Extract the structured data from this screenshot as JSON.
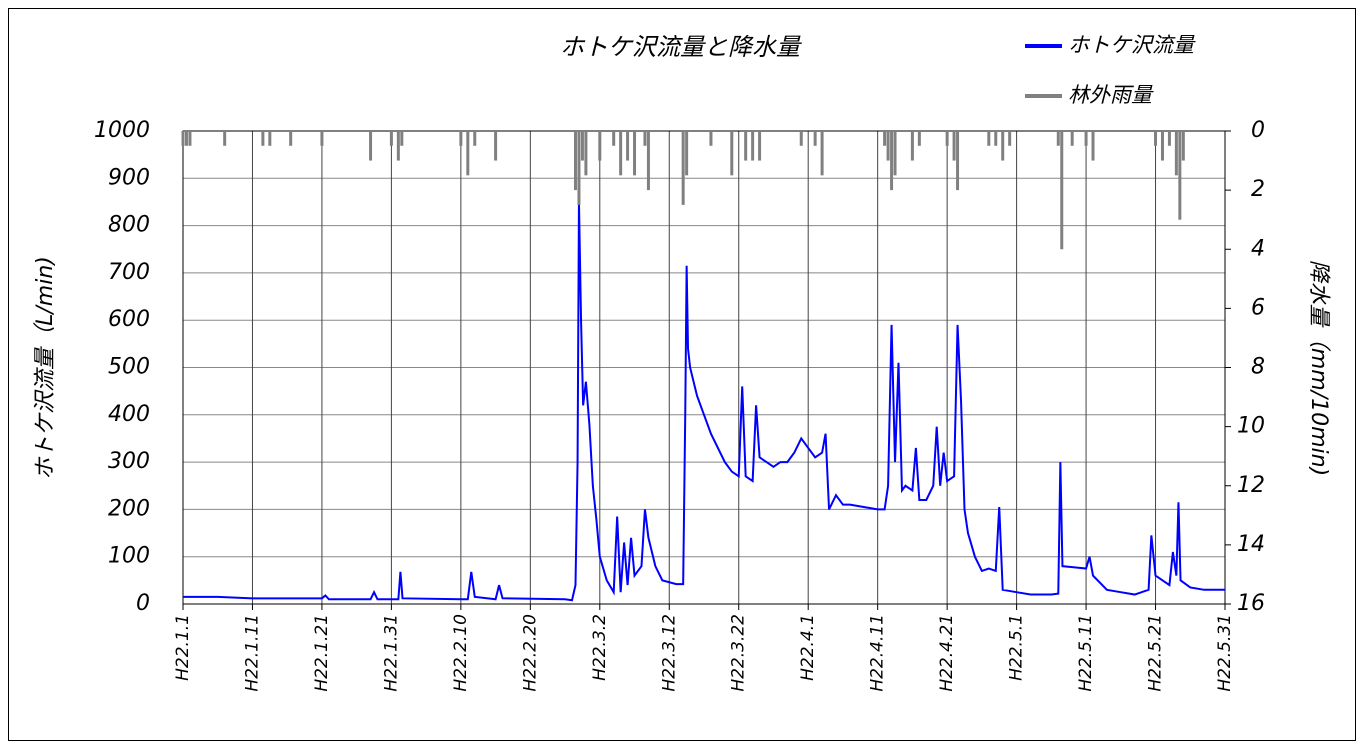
{
  "chart_data": {
    "type": "line",
    "title": "ホトケ沢流量と降水量",
    "y_label": "ホトケ沢流量（L/min)",
    "y2_label": "降水量（mm/10min)",
    "xlim": [
      0,
      150
    ],
    "xticks": [
      {
        "value": 0,
        "label": "H22.1.1"
      },
      {
        "value": 10,
        "label": "H22.1.11"
      },
      {
        "value": 20,
        "label": "H22.1.21"
      },
      {
        "value": 30,
        "label": "H22.1.31"
      },
      {
        "value": 40,
        "label": "H22.2.10"
      },
      {
        "value": 50,
        "label": "H22.2.20"
      },
      {
        "value": 60,
        "label": "H22.3.2"
      },
      {
        "value": 70,
        "label": "H22.3.12"
      },
      {
        "value": 80,
        "label": "H22.3.22"
      },
      {
        "value": 90,
        "label": "H22.4.1"
      },
      {
        "value": 100,
        "label": "H22.4.11"
      },
      {
        "value": 110,
        "label": "H22.4.21"
      },
      {
        "value": 120,
        "label": "H22.5.1"
      },
      {
        "value": 130,
        "label": "H22.5.11"
      },
      {
        "value": 140,
        "label": "H22.5.21"
      },
      {
        "value": 150,
        "label": "H22.5.31"
      }
    ],
    "ylim": [
      0,
      1000
    ],
    "yticks": [
      0,
      100,
      200,
      300,
      400,
      500,
      600,
      700,
      800,
      900,
      1000
    ],
    "y2lim": [
      16,
      0
    ],
    "y2ticks": [
      0,
      2,
      4,
      6,
      8,
      10,
      12,
      14,
      16
    ],
    "grid": true,
    "series": [
      {
        "name": "ホトケ沢流量",
        "color": "#0000ff",
        "type": "line",
        "x": [
          0,
          5,
          10,
          20,
          20.5,
          21,
          27,
          27.5,
          28,
          31,
          31.3,
          31.6,
          40,
          41,
          41.5,
          42,
          45,
          45.5,
          46,
          55,
          56,
          56.5,
          56.8,
          57,
          57.3,
          57.6,
          58,
          58.5,
          59,
          59.5,
          60,
          61,
          62,
          62.5,
          63,
          63.5,
          64,
          64.5,
          65,
          66,
          66.5,
          67,
          68,
          69,
          71,
          72,
          72.3,
          72.5,
          72.7,
          73,
          74,
          75,
          76,
          77,
          78,
          79,
          80,
          80.5,
          81,
          82,
          82.5,
          83,
          84,
          85,
          86,
          87,
          88,
          89,
          90,
          91,
          92,
          92.5,
          93,
          94,
          95,
          96,
          98,
          100,
          101,
          101.5,
          102,
          102.5,
          103,
          103.5,
          104,
          105,
          105.5,
          106,
          107,
          108,
          108.5,
          109,
          109.5,
          110,
          111,
          111.5,
          112,
          112.5,
          113,
          114,
          115,
          116,
          117,
          117.5,
          118,
          120,
          122,
          124,
          125,
          126,
          126.3,
          126.6,
          128,
          130,
          130.5,
          131,
          133,
          135,
          137,
          138,
          139,
          139.4,
          140,
          142,
          142.5,
          143,
          143.3,
          143.6,
          145,
          147,
          148,
          150
        ],
        "values": [
          15,
          15,
          12,
          12,
          18,
          10,
          10,
          25,
          10,
          10,
          68,
          12,
          10,
          10,
          68,
          15,
          10,
          40,
          12,
          10,
          8,
          40,
          300,
          850,
          600,
          420,
          470,
          380,
          250,
          180,
          100,
          50,
          25,
          185,
          25,
          130,
          40,
          140,
          60,
          80,
          200,
          140,
          80,
          50,
          42,
          42,
          400,
          715,
          540,
          500,
          440,
          400,
          360,
          330,
          300,
          280,
          270,
          460,
          270,
          260,
          420,
          310,
          300,
          290,
          300,
          300,
          320,
          350,
          330,
          310,
          320,
          360,
          200,
          230,
          210,
          210,
          205,
          200,
          200,
          250,
          590,
          300,
          510,
          240,
          250,
          240,
          330,
          220,
          220,
          250,
          375,
          250,
          320,
          260,
          270,
          590,
          430,
          200,
          150,
          100,
          70,
          75,
          70,
          205,
          30,
          25,
          20,
          20,
          20,
          22,
          300,
          80,
          78,
          75,
          100,
          60,
          30,
          25,
          20,
          25,
          30,
          145,
          60,
          40,
          110,
          60,
          215,
          50,
          35,
          30,
          30,
          30
        ]
      },
      {
        "name": "林外雨量",
        "color": "#808080",
        "type": "bar",
        "axis": "y2",
        "x": [
          0,
          0.5,
          1,
          6,
          11.5,
          12.5,
          15.5,
          20,
          27,
          30,
          31,
          31.5,
          40,
          41,
          42,
          45,
          56.5,
          57,
          57.5,
          58,
          60,
          62,
          63,
          64,
          65,
          66.5,
          67,
          72,
          72.5,
          76,
          79,
          81,
          82,
          83,
          89,
          91,
          92,
          101,
          101.5,
          102,
          102.5,
          105,
          106,
          110,
          111,
          111.5,
          116,
          117,
          118,
          119,
          126,
          126.5,
          128,
          130,
          131,
          140,
          141,
          142,
          143,
          143.5,
          144
        ],
        "values": [
          0.5,
          0.5,
          0.5,
          0.5,
          0.5,
          0.5,
          0.5,
          0.5,
          1,
          0.5,
          1,
          0.5,
          0.5,
          1.5,
          0.5,
          1,
          2,
          2.5,
          1,
          1.5,
          1,
          0.5,
          1.5,
          1,
          1.5,
          0.5,
          2,
          2.5,
          1.5,
          0.5,
          1.5,
          1,
          1,
          1,
          0.5,
          0.5,
          1.5,
          0.5,
          1,
          2,
          1.5,
          1,
          0.5,
          0.5,
          1,
          2,
          0.5,
          0.5,
          1,
          0.5,
          0.5,
          4,
          0.5,
          0.5,
          1,
          0.5,
          1,
          0.5,
          1.5,
          3,
          1
        ]
      }
    ]
  }
}
